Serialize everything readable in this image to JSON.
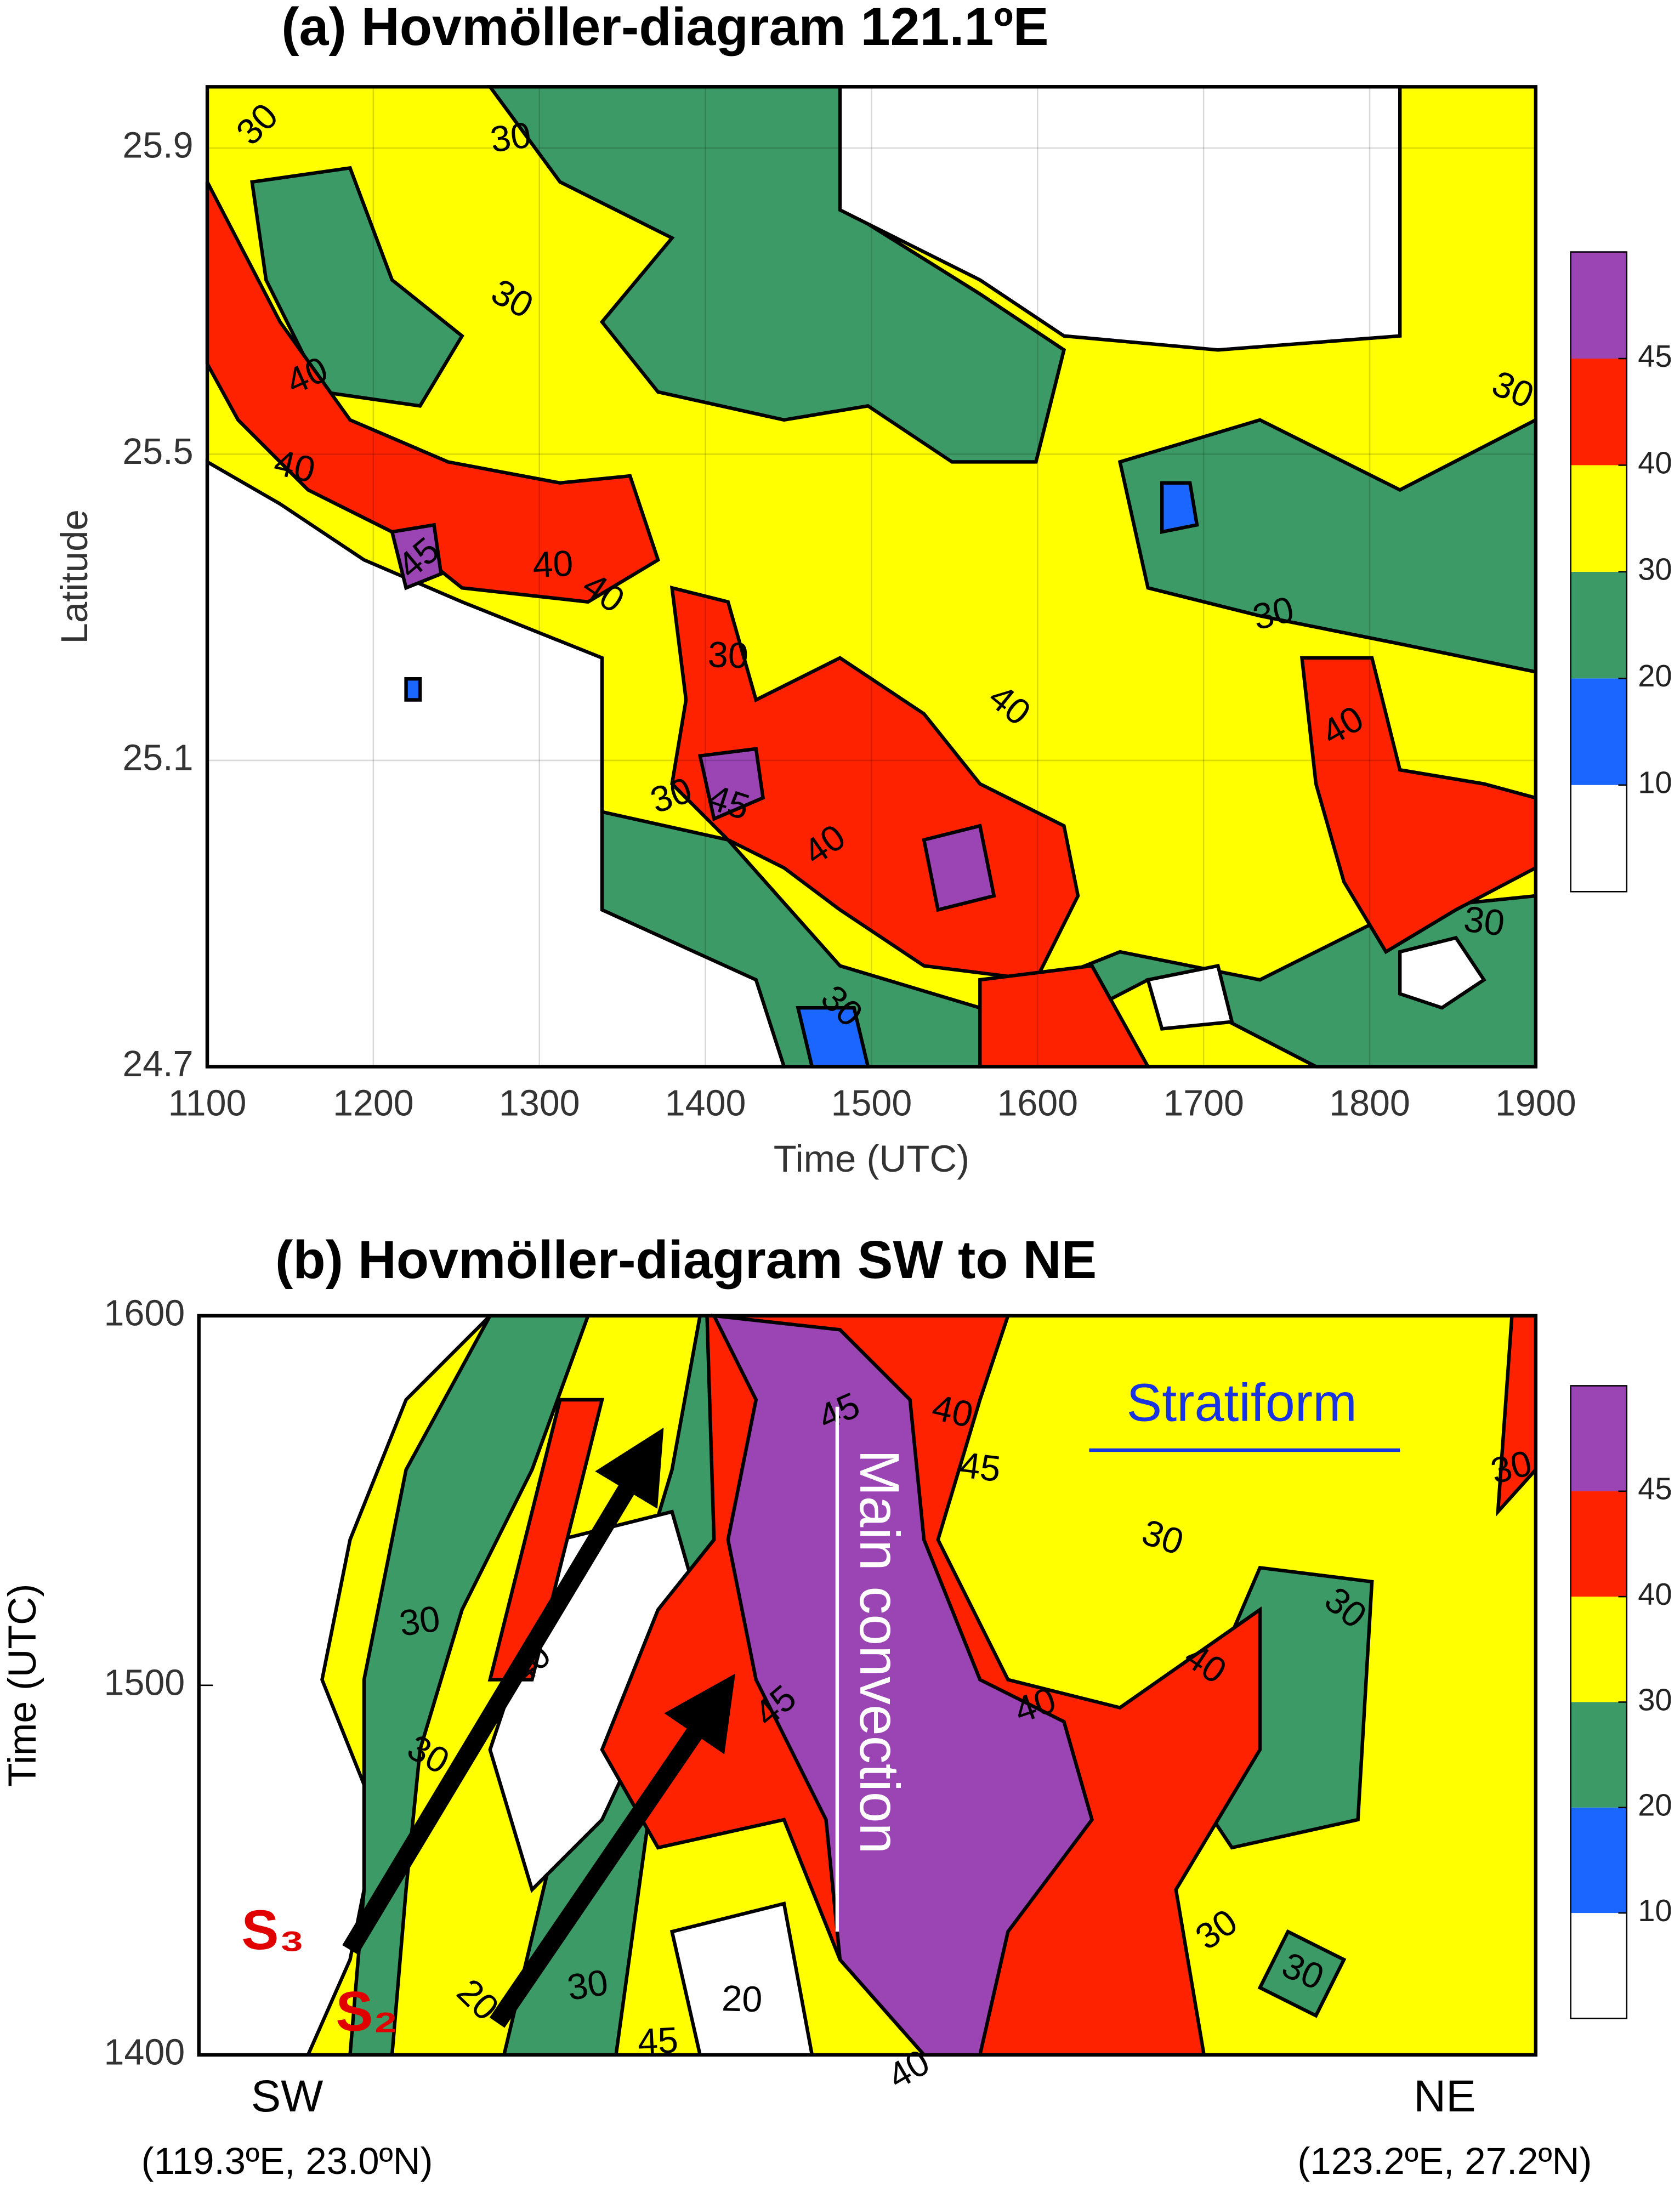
{
  "chart_data": [
    {
      "type": "contour",
      "title": "(a) Hovmöller-diagram 121.1ºE",
      "xlabel": "Time (UTC)",
      "ylabel": "Latitude",
      "xlim": [
        1100,
        1900
      ],
      "xticks": [
        1100,
        1200,
        1300,
        1400,
        1500,
        1600,
        1700,
        1800,
        1900
      ],
      "ylim": [
        24.7,
        25.98
      ],
      "yticks": [
        24.7,
        25.1,
        25.5,
        25.9
      ],
      "grid": true,
      "levels": [
        10,
        20,
        30,
        40,
        45
      ],
      "colors": [
        "#ffffff",
        "#1a66ff",
        "#3c9a66",
        "#ffff00",
        "#ff2200",
        "#9b45b5"
      ],
      "contour_labels": [
        30,
        30,
        30,
        40,
        40,
        45,
        40,
        40,
        30,
        45,
        40,
        30,
        40,
        30,
        30,
        40,
        30,
        30
      ]
    },
    {
      "type": "contour",
      "title": "(b) Hovmöller-diagram SW to NE",
      "ylabel": "Time (UTC)",
      "ylim": [
        1400,
        1600
      ],
      "yticks": [
        1400,
        1500,
        1600
      ],
      "grid": false,
      "x_labels": [
        {
          "label": "SW",
          "location": "(119.3ºE, 23.0ºN)"
        },
        {
          "label": "NE",
          "location": "(123.2ºE, 27.2ºN)"
        }
      ],
      "levels": [
        10,
        20,
        30,
        40,
        45
      ],
      "colors": [
        "#ffffff",
        "#1a66ff",
        "#3c9a66",
        "#ffff00",
        "#ff2200",
        "#9b45b5"
      ],
      "annotations": [
        "Main convection",
        "Stratiform",
        "S₃",
        "S₂"
      ],
      "contour_labels": [
        40,
        30,
        30,
        45,
        40,
        45,
        45,
        40,
        40,
        30,
        30,
        20,
        30,
        30,
        30,
        40,
        45,
        20,
        30
      ]
    }
  ]
}
